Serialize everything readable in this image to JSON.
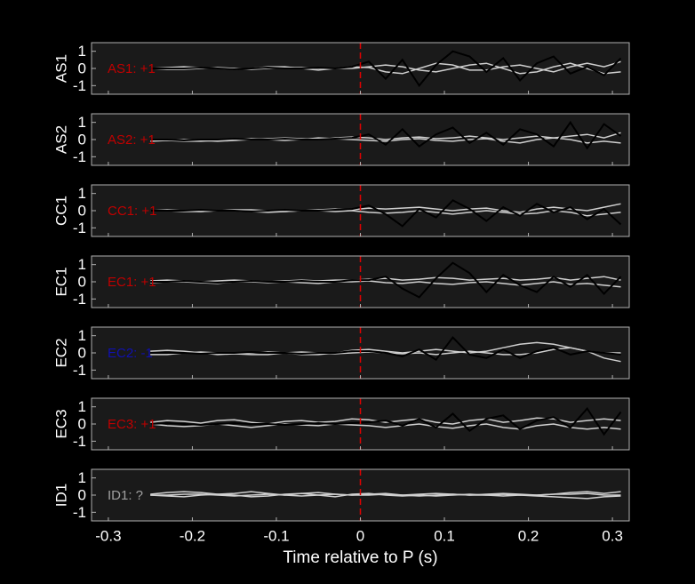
{
  "chart_data": [
    {
      "type": "line",
      "ylabel": "AS1",
      "annotation": "AS1: +1",
      "annotation_color": "#c00000",
      "vline": 0,
      "vline_color": "#e00000",
      "xlim": [
        -0.32,
        0.32
      ],
      "xticks": [
        -0.3,
        -0.2,
        -0.1,
        0,
        0.1,
        0.2,
        0.3
      ],
      "ylim": [
        -1.5,
        1.5
      ],
      "yticks": [
        -1,
        0,
        1
      ],
      "x": [
        -0.25,
        -0.23,
        -0.21,
        -0.19,
        -0.17,
        -0.15,
        -0.13,
        -0.11,
        -0.09,
        -0.07,
        -0.05,
        -0.03,
        -0.01,
        0.01,
        0.03,
        0.05,
        0.07,
        0.09,
        0.11,
        0.13,
        0.15,
        0.17,
        0.19,
        0.21,
        0.23,
        0.25,
        0.27,
        0.29,
        0.31
      ],
      "series": [
        {
          "color": "#d0d0d0",
          "values": [
            0,
            0.05,
            0.1,
            0.05,
            0,
            -0.05,
            0,
            0.1,
            0.1,
            0,
            -0.1,
            0,
            0.1,
            0.05,
            -0.2,
            -0.3,
            0,
            0.3,
            0.2,
            -0.1,
            -0.1,
            0.1,
            0.2,
            0,
            -0.2,
            0.1,
            0.3,
            0.1,
            0.4
          ]
        },
        {
          "color": "#d0d0d0",
          "values": [
            0,
            -0.05,
            -0.05,
            0,
            0.05,
            0,
            -0.05,
            0,
            0.05,
            0.05,
            0,
            0,
            0,
            0.1,
            0.2,
            0.1,
            -0.1,
            -0.2,
            0,
            0.2,
            0.3,
            0,
            -0.3,
            -0.2,
            0.1,
            0.3,
            0,
            -0.3,
            -0.2
          ]
        },
        {
          "color": "#000000",
          "values": [
            0,
            0,
            0,
            0.05,
            0,
            -0.05,
            0,
            0.05,
            0,
            0,
            0.05,
            0,
            0.1,
            0.4,
            -0.6,
            0.5,
            -1,
            0.2,
            1.0,
            0.7,
            -0.2,
            0.6,
            -0.7,
            0.3,
            0.7,
            -0.3,
            0.1,
            -0.4,
            0.6
          ]
        }
      ]
    },
    {
      "type": "line",
      "ylabel": "AS2",
      "annotation": "AS2: +1",
      "annotation_color": "#c00000",
      "vline": 0,
      "vline_color": "#e00000",
      "xlim": [
        -0.32,
        0.32
      ],
      "xticks": [
        -0.3,
        -0.2,
        -0.1,
        0,
        0.1,
        0.2,
        0.3
      ],
      "ylim": [
        -1.5,
        1.5
      ],
      "yticks": [
        -1,
        0,
        1
      ],
      "x": [
        -0.25,
        -0.23,
        -0.21,
        -0.19,
        -0.17,
        -0.15,
        -0.13,
        -0.11,
        -0.09,
        -0.07,
        -0.05,
        -0.03,
        -0.01,
        0.01,
        0.03,
        0.05,
        0.07,
        0.09,
        0.11,
        0.13,
        0.15,
        0.17,
        0.19,
        0.21,
        0.23,
        0.25,
        0.27,
        0.29,
        0.31
      ],
      "series": [
        {
          "color": "#d0d0d0",
          "values": [
            -0.1,
            -0.05,
            0,
            -0.05,
            -0.1,
            -0.05,
            0,
            0.05,
            0.1,
            0.05,
            0,
            0.1,
            0.15,
            0.1,
            0,
            0.1,
            0.15,
            0.05,
            0.1,
            0.2,
            0.1,
            0,
            0.1,
            0.2,
            0.1,
            0.2,
            0.3,
            0.1,
            0.4
          ]
        },
        {
          "color": "#d0d0d0",
          "values": [
            0,
            -0.05,
            -0.1,
            -0.1,
            -0.05,
            0,
            0.05,
            0,
            -0.05,
            0,
            0.1,
            0.05,
            0,
            -0.05,
            -0.1,
            0,
            0.05,
            -0.05,
            -0.1,
            0,
            0.05,
            -0.1,
            -0.2,
            0,
            0.1,
            0,
            -0.2,
            -0.1,
            -0.2
          ]
        },
        {
          "color": "#000000",
          "values": [
            0,
            0,
            -0.05,
            0,
            0,
            0.05,
            0,
            0,
            0.05,
            0,
            0,
            0.05,
            0.1,
            0.3,
            -0.3,
            0.6,
            -0.4,
            0.3,
            0.7,
            -0.2,
            0.4,
            -0.3,
            0.6,
            0.3,
            -0.4,
            1.0,
            -0.5,
            0.9,
            0.2
          ]
        }
      ]
    },
    {
      "type": "line",
      "ylabel": "CC1",
      "annotation": "CC1: +1",
      "annotation_color": "#c00000",
      "vline": 0,
      "vline_color": "#e00000",
      "xlim": [
        -0.32,
        0.32
      ],
      "xticks": [
        -0.3,
        -0.2,
        -0.1,
        0,
        0.1,
        0.2,
        0.3
      ],
      "ylim": [
        -1.5,
        1.5
      ],
      "yticks": [
        -1,
        0,
        1
      ],
      "x": [
        -0.25,
        -0.23,
        -0.21,
        -0.19,
        -0.17,
        -0.15,
        -0.13,
        -0.11,
        -0.09,
        -0.07,
        -0.05,
        -0.03,
        -0.01,
        0.01,
        0.03,
        0.05,
        0.07,
        0.09,
        0.11,
        0.13,
        0.15,
        0.17,
        0.19,
        0.21,
        0.23,
        0.25,
        0.27,
        0.29,
        0.31
      ],
      "series": [
        {
          "color": "#d0d0d0",
          "values": [
            0,
            0.05,
            0,
            -0.05,
            0,
            0.05,
            0.05,
            0,
            -0.05,
            0,
            0.05,
            0.1,
            0.05,
            0.15,
            0.1,
            0.15,
            0.2,
            0.1,
            0,
            0.1,
            0.15,
            0,
            -0.1,
            0.1,
            0.2,
            0.1,
            0,
            0.2,
            0.4
          ]
        },
        {
          "color": "#d0d0d0",
          "values": [
            0,
            0,
            -0.05,
            -0.05,
            0,
            0,
            -0.05,
            -0.1,
            -0.05,
            0,
            0,
            -0.05,
            0,
            -0.1,
            -0.15,
            -0.1,
            0,
            -0.1,
            -0.2,
            -0.1,
            0,
            -0.1,
            -0.2,
            -0.15,
            0,
            -0.1,
            -0.3,
            -0.2,
            -0.1
          ]
        },
        {
          "color": "#000000",
          "values": [
            0,
            0,
            0,
            0.05,
            0,
            0,
            -0.05,
            0,
            0.05,
            0,
            0,
            0.05,
            0.1,
            0.3,
            -0.2,
            -0.9,
            0.1,
            -0.4,
            0.6,
            0.1,
            -0.6,
            0.2,
            -0.3,
            0.4,
            -0.1,
            0.2,
            -0.5,
            0.1,
            -0.8
          ]
        }
      ]
    },
    {
      "type": "line",
      "ylabel": "EC1",
      "annotation": "EC1: +1",
      "annotation_color": "#c00000",
      "vline": 0,
      "vline_color": "#e00000",
      "xlim": [
        -0.32,
        0.32
      ],
      "xticks": [
        -0.3,
        -0.2,
        -0.1,
        0,
        0.1,
        0.2,
        0.3
      ],
      "ylim": [
        -1.5,
        1.5
      ],
      "yticks": [
        -1,
        0,
        1
      ],
      "x": [
        -0.25,
        -0.23,
        -0.21,
        -0.19,
        -0.17,
        -0.15,
        -0.13,
        -0.11,
        -0.09,
        -0.07,
        -0.05,
        -0.03,
        -0.01,
        0.01,
        0.03,
        0.05,
        0.07,
        0.09,
        0.11,
        0.13,
        0.15,
        0.17,
        0.19,
        0.21,
        0.23,
        0.25,
        0.27,
        0.29,
        0.31
      ],
      "series": [
        {
          "color": "#d0d0d0",
          "values": [
            0.05,
            0.1,
            0.05,
            0,
            0.05,
            0.1,
            0.05,
            0,
            0.05,
            0.1,
            0.05,
            0.1,
            0.1,
            0.15,
            0.2,
            0.1,
            0.15,
            0.25,
            0.2,
            0.1,
            0.15,
            0.2,
            0.1,
            0.15,
            0.25,
            0.1,
            0.2,
            0.3,
            0.1
          ]
        },
        {
          "color": "#d0d0d0",
          "values": [
            -0.05,
            0,
            0,
            -0.05,
            -0.1,
            0,
            0,
            -0.05,
            0,
            -0.05,
            -0.1,
            0,
            0,
            0.05,
            -0.05,
            -0.1,
            0,
            -0.1,
            -0.15,
            -0.05,
            0,
            -0.1,
            -0.2,
            -0.1,
            0,
            -0.15,
            -0.1,
            -0.2,
            -0.3
          ]
        },
        {
          "color": "#000000",
          "values": [
            0,
            0,
            0.05,
            0,
            -0.05,
            0,
            0.05,
            0,
            0,
            0.05,
            0,
            0,
            0.1,
            0.1,
            0.3,
            -0.4,
            -0.9,
            0.2,
            1.1,
            0.5,
            -0.6,
            0.4,
            -0.2,
            -0.6,
            0.3,
            -0.3,
            0.4,
            -0.7,
            0.3
          ]
        }
      ]
    },
    {
      "type": "line",
      "ylabel": "EC2",
      "annotation": "EC2: -1",
      "annotation_color": "#1010b0",
      "vline": 0,
      "vline_color": "#e00000",
      "xlim": [
        -0.32,
        0.32
      ],
      "xticks": [
        -0.3,
        -0.2,
        -0.1,
        0,
        0.1,
        0.2,
        0.3
      ],
      "ylim": [
        -1.5,
        1.5
      ],
      "yticks": [
        -1,
        0,
        1
      ],
      "x": [
        -0.25,
        -0.23,
        -0.21,
        -0.19,
        -0.17,
        -0.15,
        -0.13,
        -0.11,
        -0.09,
        -0.07,
        -0.05,
        -0.03,
        -0.01,
        0.01,
        0.03,
        0.05,
        0.07,
        0.09,
        0.11,
        0.13,
        0.15,
        0.17,
        0.19,
        0.21,
        0.23,
        0.25,
        0.27,
        0.29,
        0.31
      ],
      "series": [
        {
          "color": "#d0d0d0",
          "values": [
            0.1,
            0.15,
            0.1,
            0,
            -0.1,
            -0.05,
            0,
            0.05,
            0,
            -0.1,
            -0.1,
            0,
            0.15,
            0.2,
            0.1,
            0,
            0.1,
            0.2,
            0.1,
            0,
            0.1,
            0.3,
            0.5,
            0.6,
            0.5,
            0.3,
            0.1,
            0,
            0
          ]
        },
        {
          "color": "#d0d0d0",
          "values": [
            -0.1,
            -0.1,
            0,
            0.05,
            0,
            -0.05,
            -0.1,
            -0.1,
            0,
            0.05,
            0,
            -0.05,
            0,
            0.05,
            0,
            -0.05,
            0,
            -0.1,
            0,
            0.1,
            0,
            -0.1,
            -0.1,
            0,
            0.2,
            0.3,
            0.1,
            -0.3,
            -0.5
          ]
        },
        {
          "color": "#000000",
          "values": [
            0,
            0,
            0,
            -0.05,
            0,
            0,
            0.05,
            0,
            0,
            -0.05,
            0,
            0,
            0.1,
            0.1,
            0,
            -0.2,
            0.2,
            -0.4,
            0.9,
            -0.1,
            -0.3,
            0.2,
            -0.3,
            0.1,
            0.3,
            -0.1,
            0.1,
            0,
            -0.1
          ]
        }
      ]
    },
    {
      "type": "line",
      "ylabel": "EC3",
      "annotation": "EC3: +1",
      "annotation_color": "#c00000",
      "vline": 0,
      "vline_color": "#e00000",
      "xlim": [
        -0.32,
        0.32
      ],
      "xticks": [
        -0.3,
        -0.2,
        -0.1,
        0,
        0.1,
        0.2,
        0.3
      ],
      "ylim": [
        -1.5,
        1.5
      ],
      "yticks": [
        -1,
        0,
        1
      ],
      "x": [
        -0.25,
        -0.23,
        -0.21,
        -0.19,
        -0.17,
        -0.15,
        -0.13,
        -0.11,
        -0.09,
        -0.07,
        -0.05,
        -0.03,
        -0.01,
        0.01,
        0.03,
        0.05,
        0.07,
        0.09,
        0.11,
        0.13,
        0.15,
        0.17,
        0.19,
        0.21,
        0.23,
        0.25,
        0.27,
        0.29,
        0.31
      ],
      "series": [
        {
          "color": "#d0d0d0",
          "values": [
            0.1,
            0.2,
            0.15,
            0.05,
            0.2,
            0.25,
            0.1,
            0,
            0.15,
            0.2,
            0.1,
            0.15,
            0.3,
            0.25,
            0.1,
            0.2,
            0.3,
            0.1,
            0,
            0.2,
            0.3,
            0.1,
            0.2,
            0.35,
            0.3,
            0.1,
            0.2,
            0.3,
            0.2
          ]
        },
        {
          "color": "#d0d0d0",
          "values": [
            0,
            -0.1,
            -0.15,
            -0.1,
            0,
            -0.1,
            -0.2,
            -0.1,
            0,
            -0.05,
            -0.1,
            0,
            -0.05,
            -0.1,
            -0.2,
            -0.1,
            0,
            -0.15,
            -0.25,
            -0.1,
            0,
            -0.2,
            -0.3,
            -0.1,
            0,
            -0.2,
            -0.3,
            -0.2,
            -0.3
          ]
        },
        {
          "color": "#000000",
          "values": [
            0,
            0.05,
            0,
            -0.05,
            0,
            0.05,
            0,
            0,
            -0.05,
            0,
            0.05,
            0,
            0.05,
            0.1,
            0.2,
            -0.1,
            0.3,
            -0.2,
            0.6,
            -0.4,
            0.3,
            0.5,
            -0.3,
            0.2,
            0.4,
            -0.2,
            0.9,
            -0.6,
            0.7
          ]
        }
      ]
    },
    {
      "type": "line",
      "ylabel": "ID1",
      "annotation": "ID1: ?",
      "annotation_color": "#a0a0a0",
      "vline": 0,
      "vline_color": "#e00000",
      "xlim": [
        -0.32,
        0.32
      ],
      "xticks": [
        -0.3,
        -0.2,
        -0.1,
        0,
        0.1,
        0.2,
        0.3
      ],
      "ylim": [
        -1.5,
        1.5
      ],
      "yticks": [
        -1,
        0,
        1
      ],
      "xlabel": "Time relative to P (s)",
      "x": [
        -0.25,
        -0.23,
        -0.21,
        -0.19,
        -0.17,
        -0.15,
        -0.13,
        -0.11,
        -0.09,
        -0.07,
        -0.05,
        -0.03,
        -0.01,
        0.01,
        0.03,
        0.05,
        0.07,
        0.09,
        0.11,
        0.13,
        0.15,
        0.17,
        0.19,
        0.21,
        0.23,
        0.25,
        0.27,
        0.29,
        0.31
      ],
      "series": [
        {
          "color": "#d0d0d0",
          "values": [
            0.05,
            0.15,
            0.2,
            0.15,
            0.05,
            0.1,
            0.2,
            0.1,
            0,
            0.1,
            0.15,
            0.05,
            0,
            0.05,
            0.1,
            0,
            0.05,
            0.1,
            0.05,
            0,
            0.05,
            0.1,
            0.05,
            0,
            0.05,
            0.15,
            0.2,
            0.1,
            0.2
          ]
        },
        {
          "color": "#d0d0d0",
          "values": [
            0,
            -0.05,
            -0.1,
            0,
            0.05,
            0,
            -0.1,
            -0.05,
            0.05,
            0.1,
            0,
            -0.1,
            0.05,
            0.1,
            0,
            -0.05,
            0,
            -0.05,
            0,
            0.05,
            0,
            -0.05,
            0,
            -0.05,
            -0.1,
            -0.15,
            -0.2,
            -0.1,
            -0.05
          ]
        },
        {
          "color": "#d0d0d0",
          "values": [
            0,
            0,
            0.05,
            0.05,
            0,
            -0.05,
            0,
            0.05,
            0,
            -0.05,
            0,
            0.05,
            0,
            0,
            0.05,
            0,
            -0.05,
            0,
            0.05,
            0,
            0,
            0.05,
            0,
            0,
            0.05,
            0.05,
            0.1,
            0,
            0
          ]
        }
      ]
    }
  ]
}
